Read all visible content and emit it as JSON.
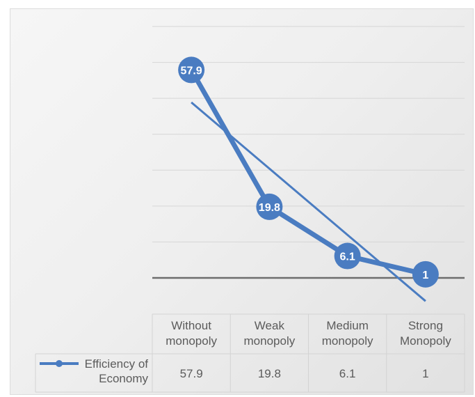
{
  "chart_data": {
    "type": "line",
    "categories": [
      [
        "Without",
        "monopoly"
      ],
      [
        "Weak",
        "monopoly"
      ],
      [
        "Medium",
        "monopoly"
      ],
      [
        "Strong",
        "Monopoly"
      ]
    ],
    "series": [
      {
        "name": [
          "Efficiency of",
          "Economy"
        ],
        "values": [
          57.9,
          19.8,
          6.1,
          1
        ],
        "data_labels": [
          "57.9",
          "19.8",
          "6.1",
          "1"
        ],
        "table_values": [
          "57.9",
          "19.8",
          "6.1",
          "1"
        ],
        "color": "#4a7cc1",
        "trendline": "linear"
      }
    ],
    "ylim": [
      -10,
      70
    ],
    "y_gridlines": [
      0,
      10,
      20,
      30,
      40,
      50,
      60,
      70
    ],
    "show_data_table": true,
    "legend_in_table": true
  }
}
